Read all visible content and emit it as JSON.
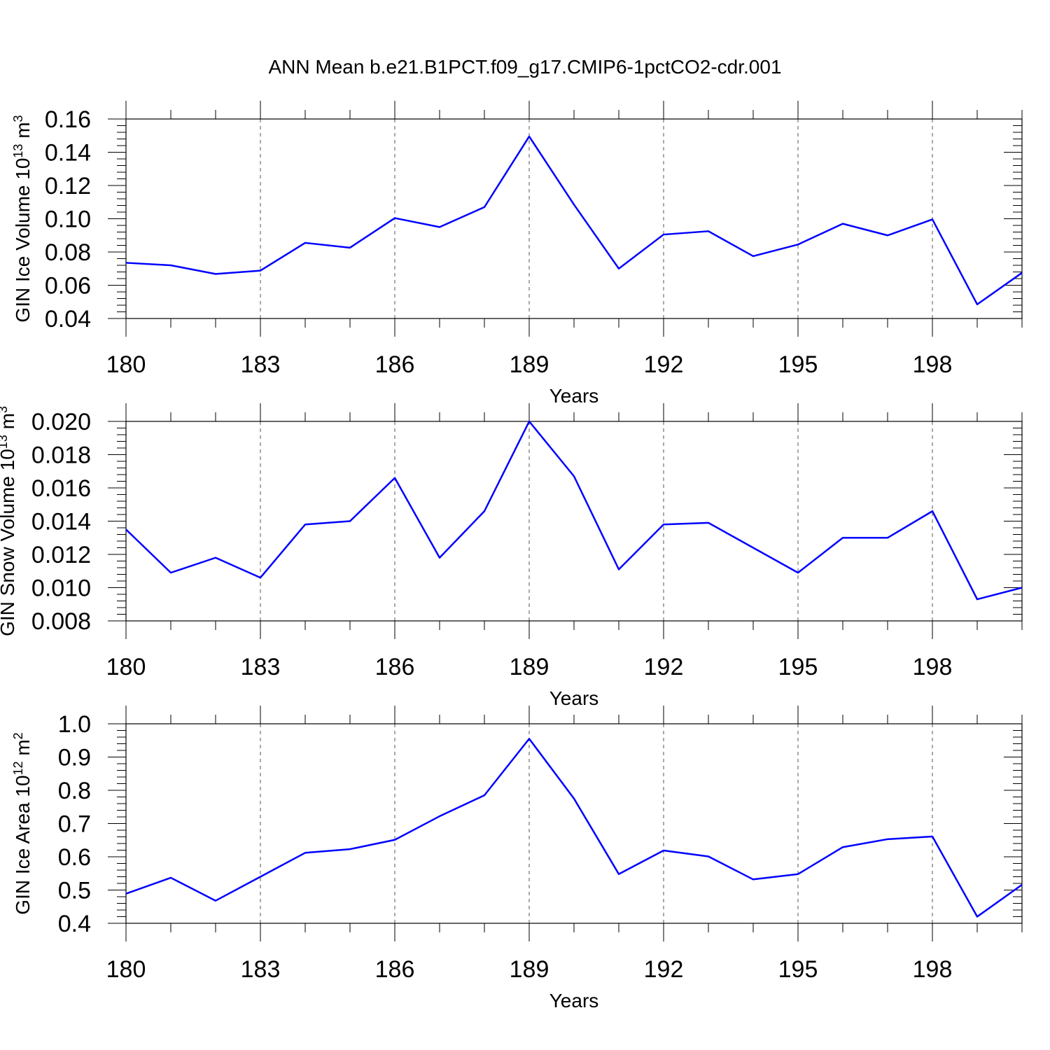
{
  "title": "ANN Mean b.e21.B1PCT.f09_g17.CMIP6-1pctCO2-cdr.001",
  "line_color": "#0000ff",
  "chart_data": [
    {
      "type": "line",
      "xlabel": "Years",
      "ylabel": {
        "base": "GIN Ice Volume 10",
        "exp1": "13",
        "mid": " m",
        "exp2": "3"
      },
      "xlim": [
        180,
        200
      ],
      "xticks": [
        180,
        183,
        186,
        189,
        192,
        195,
        198
      ],
      "ylim": [
        0.04,
        0.16
      ],
      "yticks": [
        "0.04",
        "0.06",
        "0.08",
        "0.10",
        "0.12",
        "0.14",
        "0.16"
      ],
      "x": [
        180,
        181,
        182,
        183,
        184,
        185,
        186,
        187,
        188,
        189,
        190,
        191,
        192,
        193,
        194,
        195,
        196,
        197,
        198,
        199,
        200
      ],
      "values": [
        0.0735,
        0.072,
        0.0668,
        0.0688,
        0.0855,
        0.0826,
        0.1004,
        0.095,
        0.107,
        0.1495,
        0.1085,
        0.07,
        0.0905,
        0.0925,
        0.0775,
        0.0845,
        0.097,
        0.09,
        0.0996,
        0.0485,
        0.0675
      ]
    },
    {
      "type": "line",
      "xlabel": "Years",
      "ylabel": {
        "base": "GIN Snow Volume 10",
        "exp1": "13",
        "mid": " m",
        "exp2": "3"
      },
      "xlim": [
        180,
        200
      ],
      "xticks": [
        180,
        183,
        186,
        189,
        192,
        195,
        198
      ],
      "ylim": [
        0.008,
        0.02
      ],
      "yticks": [
        "0.008",
        "0.010",
        "0.012",
        "0.014",
        "0.016",
        "0.018",
        "0.020"
      ],
      "x": [
        180,
        181,
        182,
        183,
        184,
        185,
        186,
        187,
        188,
        189,
        190,
        191,
        192,
        193,
        194,
        195,
        196,
        197,
        198,
        199,
        200
      ],
      "values": [
        0.0135,
        0.0109,
        0.0118,
        0.0106,
        0.0138,
        0.014,
        0.0166,
        0.0118,
        0.0146,
        0.02,
        0.0167,
        0.0111,
        0.0138,
        0.0139,
        0.0124,
        0.0109,
        0.013,
        0.013,
        0.0146,
        0.0093,
        0.01
      ]
    },
    {
      "type": "line",
      "xlabel": "Years",
      "ylabel": {
        "base": "GIN Ice Area 10",
        "exp1": "12",
        "mid": " m",
        "exp2": "2"
      },
      "xlim": [
        180,
        200
      ],
      "xticks": [
        180,
        183,
        186,
        189,
        192,
        195,
        198
      ],
      "ylim": [
        0.4,
        1.0
      ],
      "yticks": [
        "0.4",
        "0.5",
        "0.6",
        "0.7",
        "0.8",
        "0.9",
        "1.0"
      ],
      "x": [
        180,
        181,
        182,
        183,
        184,
        185,
        186,
        187,
        188,
        189,
        190,
        191,
        192,
        193,
        194,
        195,
        196,
        197,
        198,
        199,
        200
      ],
      "values": [
        0.489,
        0.537,
        0.468,
        0.54,
        0.612,
        0.623,
        0.651,
        0.722,
        0.785,
        0.955,
        0.775,
        0.548,
        0.619,
        0.601,
        0.532,
        0.548,
        0.629,
        0.653,
        0.661,
        0.42,
        0.516
      ]
    }
  ]
}
